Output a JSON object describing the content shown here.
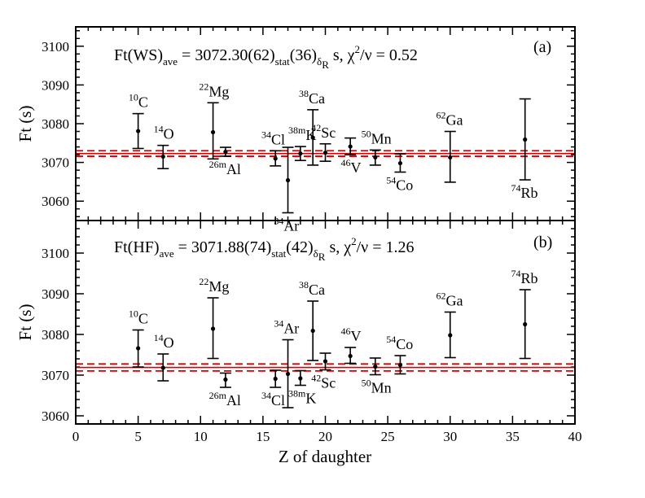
{
  "chart_data": [
    {
      "type": "scatter",
      "panel": "(a)",
      "formula": {
        "lead": "Ft(WS)",
        "sub_ave": "ave",
        "value": " = 3072.30(62)",
        "sub_stat": "stat",
        "paren": "(36)",
        "sub_delta": "δ",
        "sub_R": "R",
        "unit": " s, χ",
        "sup2": "2",
        "tail": "/ν = 0.52"
      },
      "ylabel": "Ft (s)",
      "xlim": [
        0,
        40
      ],
      "ylim": [
        3055,
        3105
      ],
      "yticks": [
        3060,
        3070,
        3080,
        3090,
        3100
      ],
      "average": {
        "value": 3072.3,
        "band": [
          3071.58,
          3073.02
        ]
      },
      "points": [
        {
          "z": 5,
          "mass": "10",
          "sym": "C",
          "y": 3078.1,
          "lo": 3073.6,
          "hi": 3082.6,
          "label_pos": "above"
        },
        {
          "z": 7,
          "mass": "14",
          "sym": "O",
          "y": 3071.5,
          "lo": 3068.4,
          "hi": 3074.4,
          "label_pos": "above"
        },
        {
          "z": 11,
          "mass": "22",
          "sym": "Mg",
          "y": 3077.8,
          "lo": 3070.9,
          "hi": 3085.4,
          "label_pos": "above"
        },
        {
          "z": 12,
          "mass": "26m",
          "sym": "Al",
          "y": 3072.7,
          "lo": 3071.6,
          "hi": 3073.9,
          "label_pos": "below"
        },
        {
          "z": 16,
          "mass": "34",
          "sym": "Cl",
          "y": 3071.0,
          "lo": 3069.1,
          "hi": 3073.0,
          "label_pos": "above"
        },
        {
          "z": 17,
          "mass": "34",
          "sym": "Ar",
          "y": 3065.4,
          "lo": 3057.0,
          "hi": 3073.9,
          "label_pos": "below"
        },
        {
          "z": 18,
          "mass": "38m",
          "sym": "K",
          "y": 3072.3,
          "lo": 3070.5,
          "hi": 3074.1,
          "label_pos": "above"
        },
        {
          "z": 19,
          "mass": "38",
          "sym": "Ca",
          "y": 3076.4,
          "lo": 3069.3,
          "hi": 3083.6,
          "label_pos": "above"
        },
        {
          "z": 20,
          "mass": "42",
          "sym": "Sc",
          "y": 3072.5,
          "lo": 3070.3,
          "hi": 3074.8,
          "label_pos": "above"
        },
        {
          "z": 22,
          "mass": "46",
          "sym": "V",
          "y": 3074.1,
          "lo": 3072.0,
          "hi": 3076.3,
          "label_pos": "below"
        },
        {
          "z": 24,
          "mass": "50",
          "sym": "Mn",
          "y": 3071.3,
          "lo": 3069.3,
          "hi": 3073.2,
          "label_pos": "above"
        },
        {
          "z": 26,
          "mass": "54",
          "sym": "Co",
          "y": 3069.8,
          "lo": 3067.5,
          "hi": 3072.2,
          "label_pos": "below"
        },
        {
          "z": 30,
          "mass": "62",
          "sym": "Ga",
          "y": 3071.3,
          "lo": 3064.9,
          "hi": 3078.0,
          "label_pos": "above"
        },
        {
          "z": 36,
          "mass": "74",
          "sym": "Rb",
          "y": 3075.9,
          "lo": 3065.5,
          "hi": 3086.4,
          "label_pos": "below"
        }
      ]
    },
    {
      "type": "scatter",
      "panel": "(b)",
      "formula": {
        "lead": "Ft(HF)",
        "sub_ave": "ave",
        "value": " = 3071.88(74)",
        "sub_stat": "stat",
        "paren": "(42)",
        "sub_delta": "δ",
        "sub_R": "R",
        "unit": " s, χ",
        "sup2": "2",
        "tail": "/ν = 1.26"
      },
      "xlabel": "Z of daughter",
      "ylabel": "Ft (s)",
      "xlim": [
        0,
        40
      ],
      "xticks": [
        0,
        5,
        10,
        15,
        20,
        25,
        30,
        35,
        40
      ],
      "ylim": [
        3058,
        3108
      ],
      "yticks": [
        3060,
        3070,
        3080,
        3090,
        3100
      ],
      "average": {
        "value": 3071.88,
        "band": [
          3071.02,
          3072.74
        ]
      },
      "points": [
        {
          "z": 5,
          "mass": "10",
          "sym": "C",
          "y": 3076.6,
          "lo": 3072.0,
          "hi": 3081.1,
          "label_pos": "above"
        },
        {
          "z": 7,
          "mass": "14",
          "sym": "O",
          "y": 3071.8,
          "lo": 3068.6,
          "hi": 3075.2,
          "label_pos": "above"
        },
        {
          "z": 11,
          "mass": "22",
          "sym": "Mg",
          "y": 3081.4,
          "lo": 3074.1,
          "hi": 3089.0,
          "label_pos": "above"
        },
        {
          "z": 12,
          "mass": "26m",
          "sym": "Al",
          "y": 3068.9,
          "lo": 3067.0,
          "hi": 3070.5,
          "label_pos": "below"
        },
        {
          "z": 16,
          "mass": "34",
          "sym": "Cl",
          "y": 3069.1,
          "lo": 3067.0,
          "hi": 3071.2,
          "label_pos": "below"
        },
        {
          "z": 17,
          "mass": "34",
          "sym": "Ar",
          "y": 3070.3,
          "lo": 3062.0,
          "hi": 3078.7,
          "label_pos": "above"
        },
        {
          "z": 18,
          "mass": "38m",
          "sym": "K",
          "y": 3069.2,
          "lo": 3067.5,
          "hi": 3071.1,
          "label_pos": "below"
        },
        {
          "z": 19,
          "mass": "38",
          "sym": "Ca",
          "y": 3080.9,
          "lo": 3073.6,
          "hi": 3088.2,
          "label_pos": "above"
        },
        {
          "z": 20,
          "mass": "42",
          "sym": "Sc",
          "y": 3073.4,
          "lo": 3071.3,
          "hi": 3075.4,
          "label_pos": "below"
        },
        {
          "z": 22,
          "mass": "46",
          "sym": "V",
          "y": 3074.7,
          "lo": 3072.9,
          "hi": 3076.8,
          "label_pos": "above"
        },
        {
          "z": 24,
          "mass": "50",
          "sym": "Mn",
          "y": 3072.1,
          "lo": 3070.1,
          "hi": 3074.2,
          "label_pos": "below"
        },
        {
          "z": 26,
          "mass": "54",
          "sym": "Co",
          "y": 3072.5,
          "lo": 3070.3,
          "hi": 3074.8,
          "label_pos": "above"
        },
        {
          "z": 30,
          "mass": "62",
          "sym": "Ga",
          "y": 3079.8,
          "lo": 3074.3,
          "hi": 3085.5,
          "label_pos": "above"
        },
        {
          "z": 36,
          "mass": "74",
          "sym": "Rb",
          "y": 3082.5,
          "lo": 3074.1,
          "hi": 3091.0,
          "label_pos": "above"
        }
      ]
    }
  ],
  "colors": {
    "average_line": "#d40000",
    "points": "#000000"
  }
}
